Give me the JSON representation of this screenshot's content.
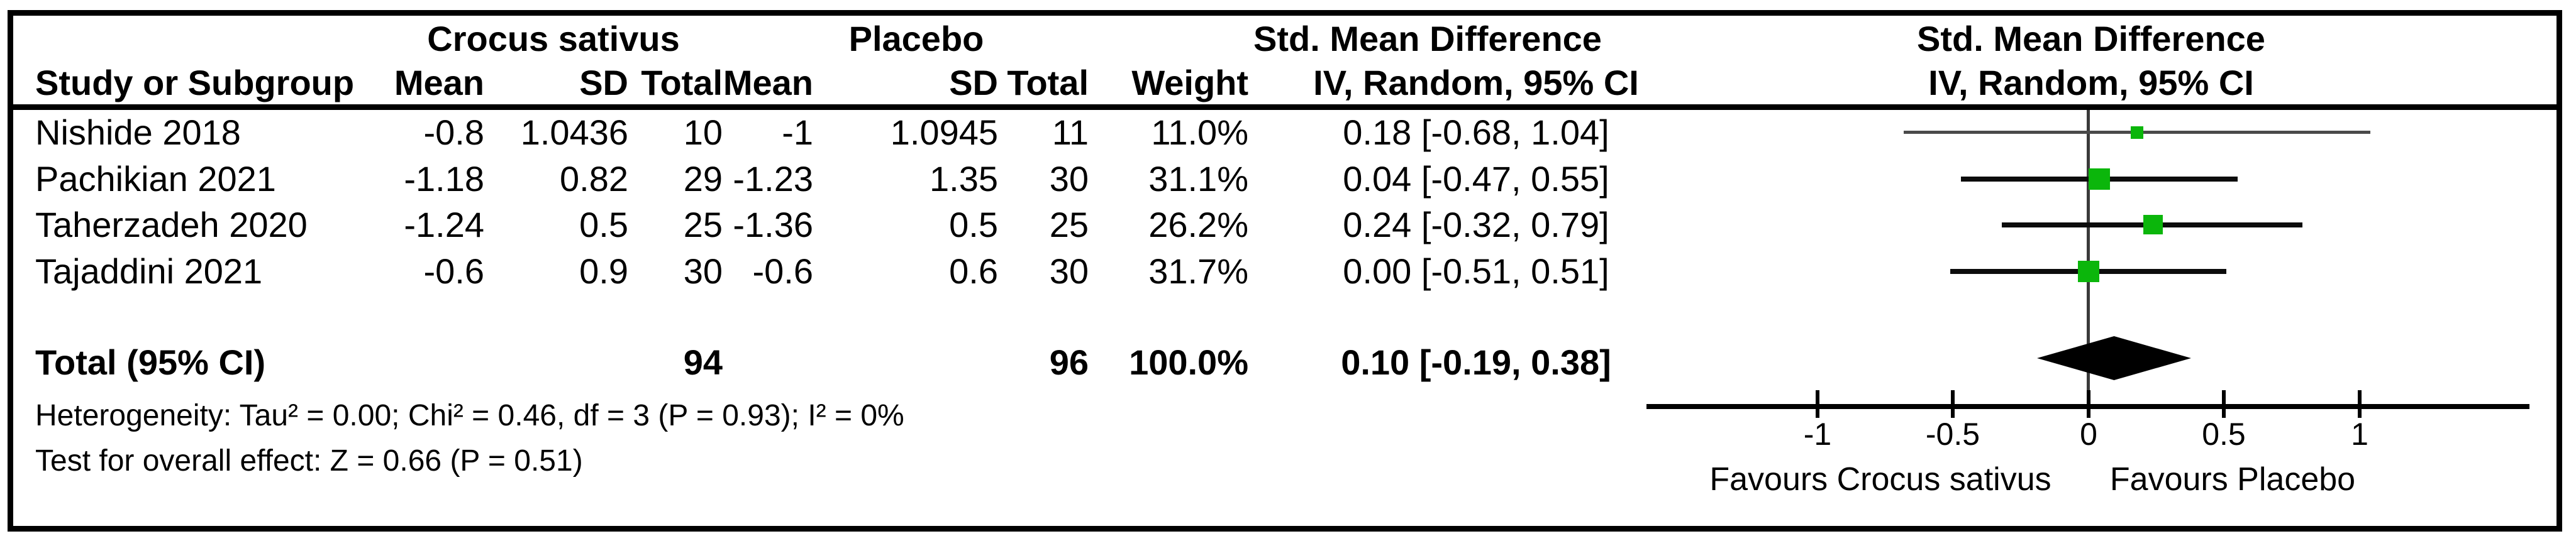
{
  "chart_data": {
    "type": "forest",
    "group_headers": [
      "Crocus sativus",
      "Placebo"
    ],
    "effect_header": "Std. Mean Difference",
    "method_header": "IV, Random, 95% CI",
    "columns": {
      "study": "Study or Subgroup",
      "mean": "Mean",
      "sd": "SD",
      "total": "Total",
      "weight": "Weight",
      "ci": "IV, Random, 95% CI"
    },
    "studies": [
      {
        "name": "Nishide 2018",
        "mean_t": "-0.8",
        "sd_t": "1.0436",
        "total_t": "10",
        "mean_c": "-1",
        "sd_c": "1.0945",
        "total_c": "11",
        "weight": "11.0%",
        "ci_text": "0.18 [-0.68, 1.04]",
        "est": 0.18,
        "lo": -0.68,
        "hi": 1.04,
        "weight_pct": 11.0
      },
      {
        "name": "Pachikian 2021",
        "mean_t": "-1.18",
        "sd_t": "0.82",
        "total_t": "29",
        "mean_c": "-1.23",
        "sd_c": "1.35",
        "total_c": "30",
        "weight": "31.1%",
        "ci_text": "0.04 [-0.47, 0.55]",
        "est": 0.04,
        "lo": -0.47,
        "hi": 0.55,
        "weight_pct": 31.1
      },
      {
        "name": "Taherzadeh 2020",
        "mean_t": "-1.24",
        "sd_t": "0.5",
        "total_t": "25",
        "mean_c": "-1.36",
        "sd_c": "0.5",
        "total_c": "25",
        "weight": "26.2%",
        "ci_text": "0.24 [-0.32, 0.79]",
        "est": 0.24,
        "lo": -0.32,
        "hi": 0.79,
        "weight_pct": 26.2
      },
      {
        "name": "Tajaddini 2021",
        "mean_t": "-0.6",
        "sd_t": "0.9",
        "total_t": "30",
        "mean_c": "-0.6",
        "sd_c": "0.6",
        "total_c": "30",
        "weight": "31.7%",
        "ci_text": "0.00 [-0.51, 0.51]",
        "est": 0.0,
        "lo": -0.51,
        "hi": 0.51,
        "weight_pct": 31.7
      }
    ],
    "total": {
      "label": "Total (95% CI)",
      "total_t": "94",
      "total_c": "96",
      "weight": "100.0%",
      "ci_text": "0.10 [-0.19, 0.38]",
      "est": 0.1,
      "lo": -0.19,
      "hi": 0.38
    },
    "heterogeneity": "Heterogeneity: Tau² = 0.00; Chi² = 0.46, df = 3 (P = 0.93); I² = 0%",
    "overall_effect": "Test for overall effect: Z = 0.66 (P = 0.51)",
    "axis": {
      "ticks": [
        -1,
        -0.5,
        0,
        0.5,
        1
      ],
      "tick_labels": [
        "-1",
        "-0.5",
        "0",
        "0.5",
        "1"
      ],
      "favours_left": "Favours Crocus sativus",
      "favours_right": "Favours Placebo"
    },
    "colors": {
      "marker_green": "#0bb60b",
      "diamond": "#000000",
      "line": "#0c0c0c",
      "line_row0": "#4a4a4a"
    }
  }
}
